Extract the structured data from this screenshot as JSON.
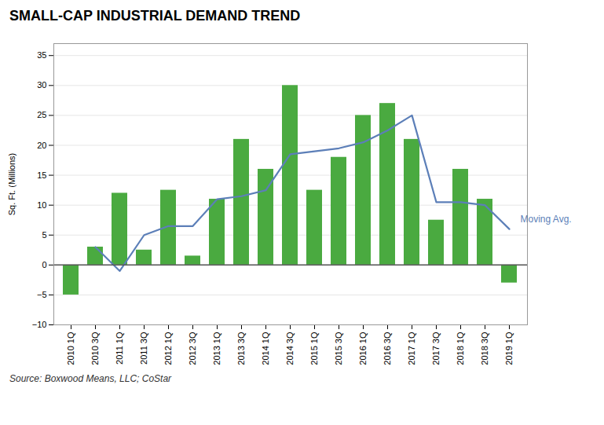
{
  "chart_data": {
    "type": "bar",
    "title": "SMALL-CAP INDUSTRIAL DEMAND TREND",
    "ylabel": "Sq. Ft. (Millions)",
    "caption": "Source: Boxwood Means, LLC; CoStar",
    "categories": [
      "2010 1Q",
      "2010 3Q",
      "2011 1Q",
      "2011 3Q",
      "2012 1Q",
      "2012 3Q",
      "2013 1Q",
      "2013 3Q",
      "2014 1Q",
      "2014 3Q",
      "2015 1Q",
      "2015 3Q",
      "2016 1Q",
      "2016 3Q",
      "2017 1Q",
      "2017 3Q",
      "2018 1Q",
      "2018 3Q",
      "2019 1Q"
    ],
    "series": [
      {
        "type": "bar",
        "color": "#4aaa40",
        "values": [
          -5.0,
          3.0,
          12.0,
          2.5,
          12.5,
          1.5,
          11.0,
          21.0,
          16.0,
          30.0,
          12.5,
          18.0,
          25.0,
          27.0,
          21.0,
          7.5,
          16.0,
          11.0,
          -3.0
        ]
      },
      {
        "name": "Moving Avg.",
        "type": "line",
        "color": "#5c7fb8",
        "values": [
          null,
          3.0,
          -1.0,
          5.0,
          6.5,
          6.5,
          11.0,
          11.5,
          12.5,
          18.5,
          19.0,
          19.5,
          20.5,
          22.5,
          25.0,
          10.5,
          10.5,
          10.0,
          6.0
        ]
      }
    ],
    "ylim": [
      -10,
      37
    ],
    "yticks": [
      -10,
      -5,
      0,
      5,
      10,
      15,
      20,
      25,
      30,
      35
    ],
    "grid": true
  }
}
